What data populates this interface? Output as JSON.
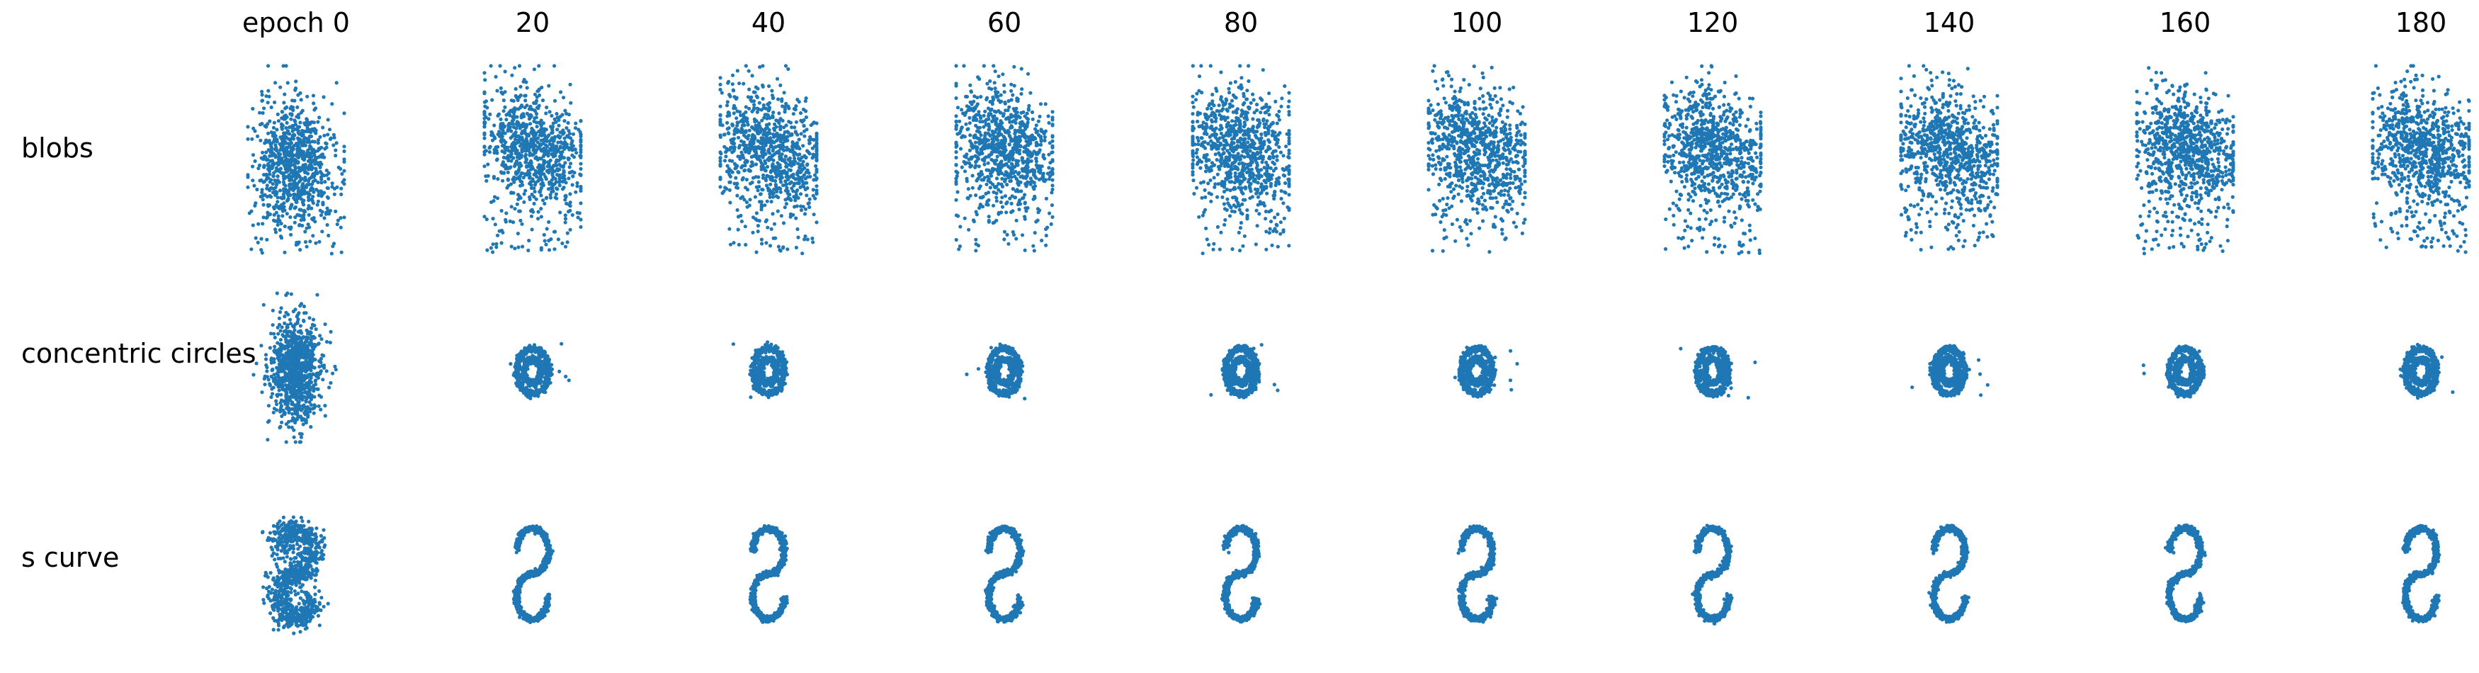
{
  "chart_data": {
    "type": "scatter",
    "layout": "grid of scatter panels",
    "point_color": "#1f77b4",
    "axes": "off",
    "grid": false,
    "legend": "none",
    "columns": [
      "epoch 0",
      "20",
      "40",
      "60",
      "80",
      "100",
      "120",
      "140",
      "160",
      "180"
    ],
    "epochs": [
      0,
      20,
      40,
      60,
      80,
      100,
      120,
      140,
      160,
      180
    ],
    "rows": [
      "blobs",
      "concentric circles",
      "s curve"
    ],
    "panels": [
      {
        "row": "blobs",
        "shape": "blob",
        "points_per_panel": 900
      },
      {
        "row": "concentric circles",
        "shape": "circles",
        "points_per_panel": 900
      },
      {
        "row": "s curve",
        "shape": "s",
        "points_per_panel": 900
      }
    ]
  }
}
